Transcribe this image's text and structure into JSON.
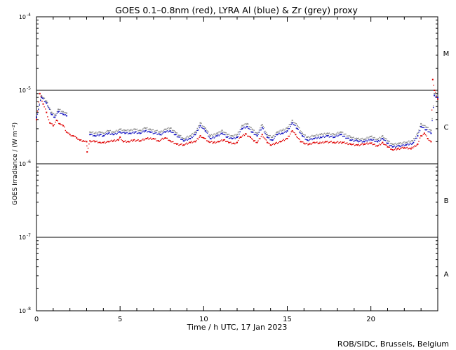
{
  "chart_data": {
    "type": "scatter",
    "title": "GOES 0.1–0.8nm (red), LYRA Al (blue) & Zr (grey) proxy",
    "xlabel": "Time / h UTC, 17 Jan 2023",
    "ylabel": "GOES Irradiance / (W m⁻²)",
    "xlim": [
      0,
      24
    ],
    "ylim": [
      1e-08,
      0.0001
    ],
    "yscale": "log",
    "x_ticks": [
      0,
      5,
      10,
      15,
      20
    ],
    "x_tick_labels": [
      "0",
      "5",
      "10",
      "15",
      "20"
    ],
    "y_ticks": [
      {
        "value": 1e-08,
        "base": "10",
        "exp": "-8"
      },
      {
        "value": 1e-07,
        "base": "10",
        "exp": "-7"
      },
      {
        "value": 1e-06,
        "base": "10",
        "exp": "-6"
      },
      {
        "value": 1e-05,
        "base": "10",
        "exp": "-5"
      },
      {
        "value": 0.0001,
        "base": "10",
        "exp": "-4"
      }
    ],
    "class_levels": [
      1e-07,
      1e-06,
      1e-05
    ],
    "flare_classes": [
      {
        "label": "A",
        "value": 3.2e-08
      },
      {
        "label": "B",
        "value": 3.2e-07
      },
      {
        "label": "C",
        "value": 3.2e-06
      },
      {
        "label": "M",
        "value": 3.2e-05
      }
    ],
    "series": [
      {
        "name": "GOES 0.1–0.8nm",
        "color": "#e00000",
        "points": [
          [
            0.0,
            4e-06
          ],
          [
            0.2,
            9e-06
          ],
          [
            0.4,
            6.5e-06
          ],
          [
            0.6,
            5e-06
          ],
          [
            0.8,
            3.6e-06
          ],
          [
            1.0,
            3.3e-06
          ],
          [
            1.2,
            3.9e-06
          ],
          [
            1.4,
            3.5e-06
          ],
          [
            1.6,
            3.3e-06
          ],
          [
            1.8,
            2.7e-06
          ],
          [
            2.0,
            2.5e-06
          ],
          [
            2.2,
            2.4e-06
          ],
          [
            2.4,
            2.25e-06
          ],
          [
            2.6,
            2.1e-06
          ],
          [
            2.8,
            2.05e-06
          ],
          [
            3.0,
            2e-06
          ],
          [
            3.03,
            1.45e-06
          ],
          [
            3.2,
            2.05e-06
          ],
          [
            3.5,
            2e-06
          ],
          [
            3.8,
            1.95e-06
          ],
          [
            4.0,
            1.95e-06
          ],
          [
            4.3,
            2e-06
          ],
          [
            4.6,
            2.05e-06
          ],
          [
            4.9,
            2.1e-06
          ],
          [
            5.0,
            2.3e-06
          ],
          [
            5.2,
            2e-06
          ],
          [
            5.5,
            2e-06
          ],
          [
            5.8,
            2.1e-06
          ],
          [
            6.2,
            2.05e-06
          ],
          [
            6.6,
            2.2e-06
          ],
          [
            7.0,
            2.2e-06
          ],
          [
            7.3,
            2.05e-06
          ],
          [
            7.7,
            2.25e-06
          ],
          [
            8.0,
            2.05e-06
          ],
          [
            8.4,
            1.85e-06
          ],
          [
            8.8,
            1.8e-06
          ],
          [
            9.2,
            1.95e-06
          ],
          [
            9.5,
            2e-06
          ],
          [
            9.8,
            2.4e-06
          ],
          [
            10.0,
            2.25e-06
          ],
          [
            10.3,
            2e-06
          ],
          [
            10.6,
            1.95e-06
          ],
          [
            10.9,
            2e-06
          ],
          [
            11.2,
            2.1e-06
          ],
          [
            11.5,
            1.95e-06
          ],
          [
            11.8,
            1.9e-06
          ],
          [
            12.0,
            1.95e-06
          ],
          [
            12.2,
            2.3e-06
          ],
          [
            12.5,
            2.55e-06
          ],
          [
            12.8,
            2.3e-06
          ],
          [
            13.0,
            2.05e-06
          ],
          [
            13.2,
            1.95e-06
          ],
          [
            13.5,
            2.5e-06
          ],
          [
            13.8,
            1.95e-06
          ],
          [
            14.0,
            1.8e-06
          ],
          [
            14.3,
            1.9e-06
          ],
          [
            14.6,
            2e-06
          ],
          [
            15.0,
            2.2e-06
          ],
          [
            15.3,
            2.8e-06
          ],
          [
            15.5,
            2.5e-06
          ],
          [
            15.8,
            2e-06
          ],
          [
            16.0,
            1.9e-06
          ],
          [
            16.3,
            1.85e-06
          ],
          [
            16.6,
            1.95e-06
          ],
          [
            16.9,
            1.9e-06
          ],
          [
            17.3,
            2e-06
          ],
          [
            17.8,
            1.95e-06
          ],
          [
            18.3,
            1.95e-06
          ],
          [
            18.8,
            1.85e-06
          ],
          [
            19.2,
            1.8e-06
          ],
          [
            19.6,
            1.85e-06
          ],
          [
            20.0,
            1.9e-06
          ],
          [
            20.4,
            1.75e-06
          ],
          [
            20.7,
            1.95e-06
          ],
          [
            21.0,
            1.7e-06
          ],
          [
            21.3,
            1.55e-06
          ],
          [
            21.6,
            1.6e-06
          ],
          [
            22.0,
            1.65e-06
          ],
          [
            22.4,
            1.6e-06
          ],
          [
            22.8,
            1.85e-06
          ],
          [
            23.0,
            2.4e-06
          ],
          [
            23.2,
            2.6e-06
          ],
          [
            23.4,
            2.2e-06
          ],
          [
            23.6,
            2e-06
          ],
          [
            23.7,
            1.4e-05
          ],
          [
            23.8,
            1e-05
          ],
          [
            24.0,
            7.6e-06
          ]
        ]
      },
      {
        "name": "LYRA Al proxy",
        "color": "#1010c0",
        "points": [
          [
            0.0,
            4.3e-06
          ],
          [
            0.3,
            8e-06
          ],
          [
            0.6,
            6.7e-06
          ],
          [
            0.9,
            4.7e-06
          ],
          [
            1.1,
            4.3e-06
          ],
          [
            1.3,
            5.1e-06
          ],
          [
            1.6,
            4.7e-06
          ],
          [
            1.8,
            4.5e-06
          ],
          [
            3.2,
            2.5e-06
          ],
          [
            3.5,
            2.4e-06
          ],
          [
            3.8,
            2.5e-06
          ],
          [
            4.0,
            2.4e-06
          ],
          [
            4.3,
            2.6e-06
          ],
          [
            4.6,
            2.5e-06
          ],
          [
            5.0,
            2.7e-06
          ],
          [
            5.3,
            2.6e-06
          ],
          [
            5.6,
            2.6e-06
          ],
          [
            5.9,
            2.7e-06
          ],
          [
            6.2,
            2.6e-06
          ],
          [
            6.5,
            2.8e-06
          ],
          [
            6.8,
            2.7e-06
          ],
          [
            7.4,
            2.5e-06
          ],
          [
            7.7,
            2.7e-06
          ],
          [
            8.0,
            2.8e-06
          ],
          [
            8.3,
            2.5e-06
          ],
          [
            8.8,
            2.05e-06
          ],
          [
            9.2,
            2.2e-06
          ],
          [
            9.5,
            2.5e-06
          ],
          [
            9.8,
            3.3e-06
          ],
          [
            10.1,
            2.8e-06
          ],
          [
            10.4,
            2.2e-06
          ],
          [
            10.8,
            2.4e-06
          ],
          [
            11.1,
            2.6e-06
          ],
          [
            11.4,
            2.3e-06
          ],
          [
            11.7,
            2.2e-06
          ],
          [
            12.0,
            2.3e-06
          ],
          [
            12.3,
            3e-06
          ],
          [
            12.6,
            3.2e-06
          ],
          [
            12.9,
            2.7e-06
          ],
          [
            13.2,
            2.4e-06
          ],
          [
            13.5,
            3.1e-06
          ],
          [
            13.8,
            2.3e-06
          ],
          [
            14.1,
            2.1e-06
          ],
          [
            14.4,
            2.5e-06
          ],
          [
            14.7,
            2.6e-06
          ],
          [
            15.0,
            2.8e-06
          ],
          [
            15.3,
            3.6e-06
          ],
          [
            15.6,
            3e-06
          ],
          [
            15.9,
            2.4e-06
          ],
          [
            16.2,
            2.1e-06
          ],
          [
            16.6,
            2.2e-06
          ],
          [
            17.0,
            2.3e-06
          ],
          [
            17.4,
            2.4e-06
          ],
          [
            17.8,
            2.3e-06
          ],
          [
            18.2,
            2.5e-06
          ],
          [
            18.8,
            2.1e-06
          ],
          [
            19.2,
            2.05e-06
          ],
          [
            19.6,
            2e-06
          ],
          [
            20.0,
            2.15e-06
          ],
          [
            20.4,
            2e-06
          ],
          [
            20.7,
            2.2e-06
          ],
          [
            21.0,
            1.9e-06
          ],
          [
            21.3,
            1.7e-06
          ],
          [
            21.7,
            1.75e-06
          ],
          [
            22.1,
            1.8e-06
          ],
          [
            22.5,
            1.9e-06
          ],
          [
            22.8,
            2.4e-06
          ],
          [
            23.0,
            3.2e-06
          ],
          [
            23.3,
            2.9e-06
          ],
          [
            23.6,
            2.6e-06
          ],
          [
            23.8,
            8.5e-06
          ],
          [
            24.0,
            8e-06
          ]
        ]
      },
      {
        "name": "LYRA Zr proxy",
        "color": "#8c8c8c",
        "points": [
          [
            0.0,
            4.6e-06
          ],
          [
            0.3,
            8.4e-06
          ],
          [
            0.6,
            7.1e-06
          ],
          [
            0.9,
            5e-06
          ],
          [
            1.1,
            4.6e-06
          ],
          [
            1.3,
            5.5e-06
          ],
          [
            1.6,
            5.1e-06
          ],
          [
            1.8,
            4.9e-06
          ],
          [
            3.2,
            2.7e-06
          ],
          [
            3.5,
            2.6e-06
          ],
          [
            3.8,
            2.7e-06
          ],
          [
            4.0,
            2.6e-06
          ],
          [
            4.3,
            2.8e-06
          ],
          [
            4.6,
            2.7e-06
          ],
          [
            5.0,
            2.95e-06
          ],
          [
            5.3,
            2.85e-06
          ],
          [
            5.6,
            2.85e-06
          ],
          [
            5.9,
            2.95e-06
          ],
          [
            6.2,
            2.85e-06
          ],
          [
            6.5,
            3.05e-06
          ],
          [
            6.8,
            2.95e-06
          ],
          [
            7.4,
            2.7e-06
          ],
          [
            7.7,
            2.95e-06
          ],
          [
            8.0,
            3.05e-06
          ],
          [
            8.3,
            2.7e-06
          ],
          [
            8.8,
            2.2e-06
          ],
          [
            9.2,
            2.4e-06
          ],
          [
            9.5,
            2.7e-06
          ],
          [
            9.8,
            3.6e-06
          ],
          [
            10.1,
            3.05e-06
          ],
          [
            10.4,
            2.4e-06
          ],
          [
            10.8,
            2.6e-06
          ],
          [
            11.1,
            2.85e-06
          ],
          [
            11.4,
            2.5e-06
          ],
          [
            11.7,
            2.4e-06
          ],
          [
            12.0,
            2.5e-06
          ],
          [
            12.3,
            3.3e-06
          ],
          [
            12.6,
            3.5e-06
          ],
          [
            12.9,
            2.95e-06
          ],
          [
            13.2,
            2.6e-06
          ],
          [
            13.5,
            3.4e-06
          ],
          [
            13.8,
            2.5e-06
          ],
          [
            14.1,
            2.3e-06
          ],
          [
            14.4,
            2.7e-06
          ],
          [
            14.7,
            2.85e-06
          ],
          [
            15.0,
            3.05e-06
          ],
          [
            15.3,
            3.9e-06
          ],
          [
            15.6,
            3.3e-06
          ],
          [
            15.9,
            2.6e-06
          ],
          [
            16.2,
            2.3e-06
          ],
          [
            16.6,
            2.4e-06
          ],
          [
            17.0,
            2.5e-06
          ],
          [
            17.4,
            2.6e-06
          ],
          [
            17.8,
            2.5e-06
          ],
          [
            18.2,
            2.7e-06
          ],
          [
            18.8,
            2.3e-06
          ],
          [
            19.2,
            2.2e-06
          ],
          [
            19.6,
            2.15e-06
          ],
          [
            20.0,
            2.35e-06
          ],
          [
            20.4,
            2.15e-06
          ],
          [
            20.7,
            2.4e-06
          ],
          [
            21.0,
            2.05e-06
          ],
          [
            21.3,
            1.85e-06
          ],
          [
            21.7,
            1.9e-06
          ],
          [
            22.1,
            1.95e-06
          ],
          [
            22.5,
            2.05e-06
          ],
          [
            22.8,
            2.6e-06
          ],
          [
            23.0,
            3.5e-06
          ],
          [
            23.3,
            3.15e-06
          ],
          [
            23.6,
            2.85e-06
          ],
          [
            23.8,
            9e-06
          ],
          [
            24.0,
            8.5e-06
          ]
        ]
      }
    ]
  },
  "footer": {
    "credit": "ROB/SIDC, Brussels, Belgium"
  }
}
